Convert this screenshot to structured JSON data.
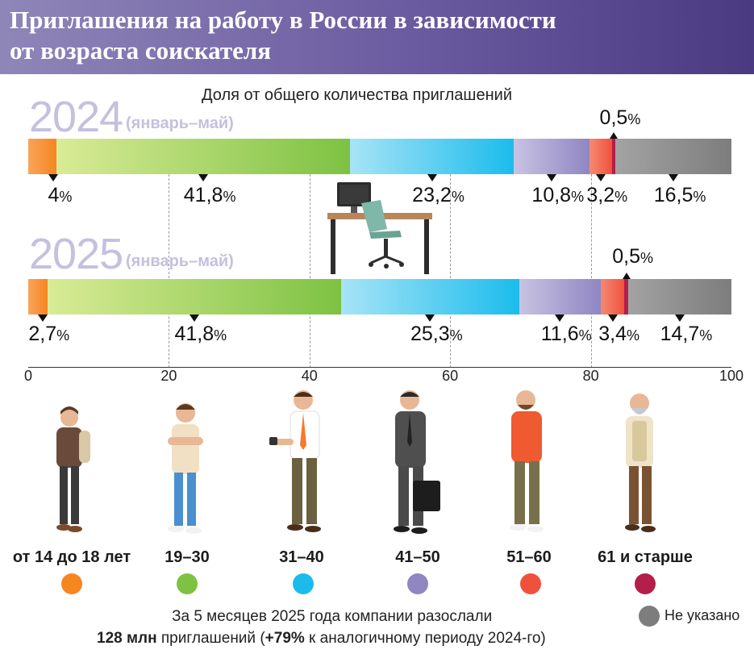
{
  "header": {
    "title": "Приглашения на работу в России в зависимости\nот возраста соискателя"
  },
  "subtitle": "Доля от общего количества приглашений",
  "chart_data": {
    "type": "bar",
    "orientation": "horizontal-stacked",
    "xlim": [
      0,
      100
    ],
    "xticks": [
      "0",
      "20",
      "40",
      "60",
      "80",
      "100"
    ],
    "categories": [
      "от 14 до 18 лет",
      "19–30",
      "31–40",
      "41–50",
      "51–60",
      "61 и старше",
      "Не указано"
    ],
    "colors": [
      "#f6861f",
      "#7dc242",
      "#1bbcec",
      "#8f86c2",
      "#f0513c",
      "#b41e4a",
      "#7d7d7d"
    ],
    "series": [
      {
        "name": "2024",
        "period_note": "(январь–май)",
        "values": [
          4,
          41.8,
          23.2,
          10.8,
          3.2,
          0.5,
          16.5
        ],
        "labels": [
          "4",
          "41,8",
          "23,2",
          "10,8",
          "3,2",
          "0,5",
          "16,5"
        ]
      },
      {
        "name": "2025",
        "period_note": "(январь–май)",
        "values": [
          2.7,
          41.8,
          25.3,
          11.6,
          3.4,
          0.5,
          14.7
        ],
        "labels": [
          "2,7",
          "41,8",
          "25,3",
          "11,6",
          "3,4",
          "0,5",
          "14,7"
        ]
      }
    ],
    "unit": "%",
    "grid": true
  },
  "legend": {
    "age_groups": [
      "от 14 до 18 лет",
      "19–30",
      "31–40",
      "41–50",
      "51–60",
      "61 и старше"
    ],
    "not_specified": "Не указано"
  },
  "footer": {
    "line1": "За 5 месяцев 2025 года компании разослали",
    "line2_bold_a": "128 млн",
    "line2_mid": " приглашений (",
    "line2_bold_b": "+79%",
    "line2_end": " к аналогичному периоду 2024-го)"
  }
}
